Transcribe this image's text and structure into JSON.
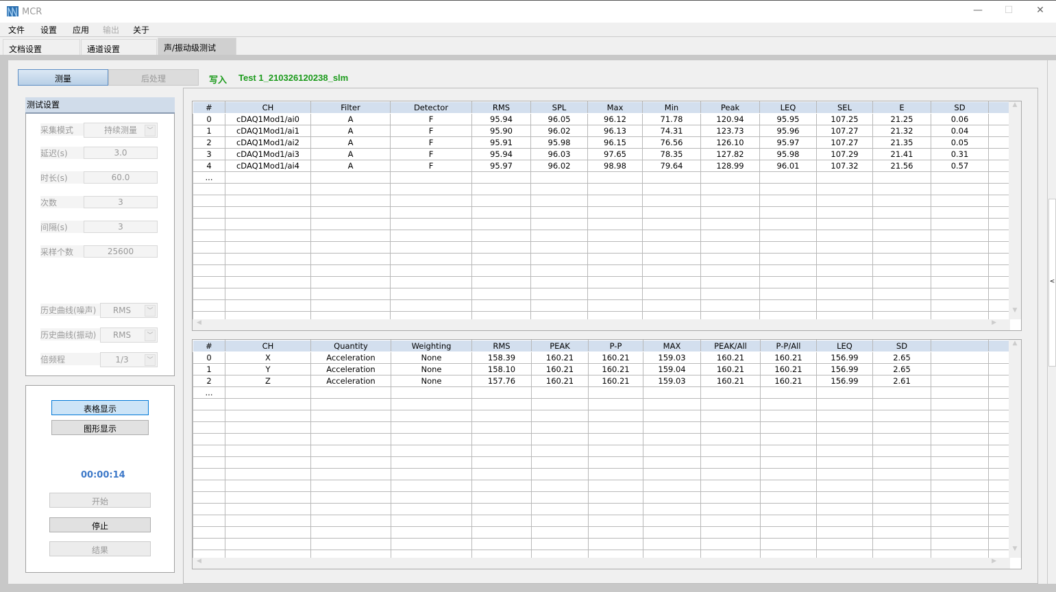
{
  "app": {
    "title": "MCR",
    "minimize": "—",
    "maximize": "☐",
    "close": "✕"
  },
  "menu": [
    "文件",
    "设置",
    "应用",
    "输出",
    "关于"
  ],
  "tabs": [
    "文档设置",
    "通道设置",
    "声/振动级测试"
  ],
  "mode": {
    "measure": "测量",
    "post": "后处理"
  },
  "write": {
    "label": "写入",
    "file": "Test 1_210326120238_slm"
  },
  "settings": {
    "title": "测试设置",
    "fields": [
      {
        "label": "采集模式",
        "value": "持续测量",
        "dropdown": true
      },
      {
        "label": "延迟(s)",
        "value": "3.0"
      },
      {
        "label": "时长(s)",
        "value": "60.0"
      },
      {
        "label": "次数",
        "value": "3"
      },
      {
        "label": "间隔(s)",
        "value": "3"
      },
      {
        "label": "采样个数",
        "value": "25600"
      }
    ],
    "dropdowns": [
      {
        "label": "历史曲线(噪声)",
        "value": "RMS"
      },
      {
        "label": "历史曲线(振动)",
        "value": "RMS"
      },
      {
        "label": "倍频程",
        "value": "1/3"
      }
    ]
  },
  "controls": {
    "table_view": "表格显示",
    "graph_view": "图形显示",
    "timer": "00:00:14",
    "start": "开始",
    "stop": "停止",
    "result": "结果"
  },
  "sound_table": {
    "headers": [
      "#",
      "CH",
      "Filter",
      "Detector",
      "RMS",
      "SPL",
      "Max",
      "Min",
      "Peak",
      "LEQ",
      "SEL",
      "E",
      "SD",
      ""
    ],
    "rows": [
      [
        "0",
        "cDAQ1Mod1/ai0",
        "A",
        "F",
        "95.94",
        "96.05",
        "96.12",
        "71.78",
        "120.94",
        "95.95",
        "107.25",
        "21.25",
        "0.06",
        ""
      ],
      [
        "1",
        "cDAQ1Mod1/ai1",
        "A",
        "F",
        "95.90",
        "96.02",
        "96.13",
        "74.31",
        "123.73",
        "95.96",
        "107.27",
        "21.32",
        "0.04",
        ""
      ],
      [
        "2",
        "cDAQ1Mod1/ai2",
        "A",
        "F",
        "95.91",
        "95.98",
        "96.15",
        "76.56",
        "126.10",
        "95.97",
        "107.27",
        "21.35",
        "0.05",
        ""
      ],
      [
        "3",
        "cDAQ1Mod1/ai3",
        "A",
        "F",
        "95.94",
        "96.03",
        "97.65",
        "78.35",
        "127.82",
        "95.98",
        "107.29",
        "21.41",
        "0.31",
        ""
      ],
      [
        "4",
        "cDAQ1Mod1/ai4",
        "A",
        "F",
        "95.97",
        "96.02",
        "98.98",
        "79.64",
        "128.99",
        "96.01",
        "107.32",
        "21.56",
        "0.57",
        ""
      ],
      [
        "...",
        "",
        "",
        "",
        "",
        "",
        "",
        "",
        "",
        "",
        "",
        "",
        "",
        ""
      ]
    ]
  },
  "vib_table": {
    "headers": [
      "#",
      "CH",
      "Quantity",
      "Weighting",
      "RMS",
      "PEAK",
      "P-P",
      "MAX",
      "PEAK/All",
      "P-P/All",
      "LEQ",
      "SD",
      "",
      ""
    ],
    "rows": [
      [
        "0",
        "X",
        "Acceleration",
        "None",
        "158.39",
        "160.21",
        "160.21",
        "159.03",
        "160.21",
        "160.21",
        "156.99",
        "2.65",
        "",
        ""
      ],
      [
        "1",
        "Y",
        "Acceleration",
        "None",
        "158.10",
        "160.21",
        "160.21",
        "159.04",
        "160.21",
        "160.21",
        "156.99",
        "2.65",
        "",
        ""
      ],
      [
        "2",
        "Z",
        "Acceleration",
        "None",
        "157.76",
        "160.21",
        "160.21",
        "159.03",
        "160.21",
        "160.21",
        "156.99",
        "2.61",
        "",
        ""
      ],
      [
        "...",
        "",
        "",
        "",
        "",
        "",
        "",
        "",
        "",
        "",
        "",
        "",
        "",
        ""
      ]
    ]
  },
  "side_toggle": "<"
}
